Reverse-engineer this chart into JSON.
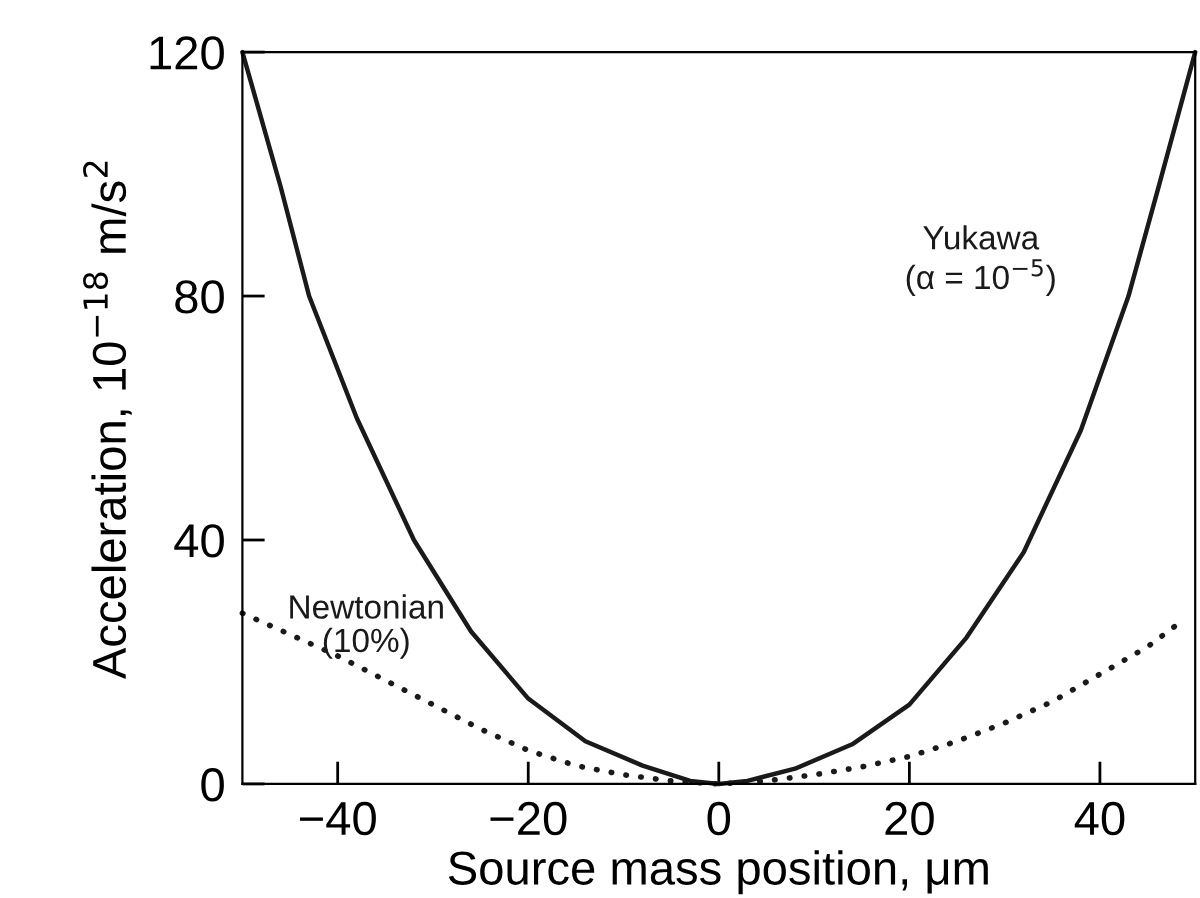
{
  "chart_data": {
    "type": "line",
    "xlabel": "Source mass position, μm",
    "ylabel": "Acceleration, 10$^{−18}$ m/s$^{2}$",
    "xlim": [
      -50,
      50
    ],
    "ylim": [
      0,
      120
    ],
    "xticks": [
      -40,
      -20,
      0,
      20,
      40
    ],
    "yticks": [
      0,
      40,
      80,
      120
    ],
    "grid": false,
    "legend": false,
    "marker": "none",
    "series": [
      {
        "name": "Yukawa\n(α = 10$^{−5}$)",
        "color": "#1a1a1a",
        "line_style": "solid",
        "x": [
          -50,
          -46,
          -43,
          -38,
          -32,
          -26,
          -20,
          -14,
          -8,
          -3,
          0,
          3,
          8,
          14,
          20,
          26,
          32,
          38,
          43,
          46,
          50
        ],
        "values": [
          120,
          98,
          80,
          60,
          40,
          25,
          14,
          7,
          3,
          0.5,
          0,
          0.5,
          2.5,
          6.5,
          13,
          24,
          38,
          58,
          80,
          97,
          120
        ]
      },
      {
        "name": "Newtonian\n(10%)",
        "color": "#1a1a1a",
        "line_style": "dotted",
        "x": [
          -50,
          -45,
          -40,
          -35,
          -30,
          -25,
          -20,
          -15,
          -10,
          -5,
          0,
          5,
          10,
          15,
          20,
          25,
          30,
          35,
          40,
          45,
          48
        ],
        "values": [
          28,
          24.5,
          21,
          17,
          13,
          9,
          5.5,
          3,
          1.5,
          0.5,
          0,
          0.5,
          1.5,
          2.8,
          4.5,
          7,
          10,
          13.5,
          18,
          22.5,
          26
        ]
      }
    ]
  }
}
